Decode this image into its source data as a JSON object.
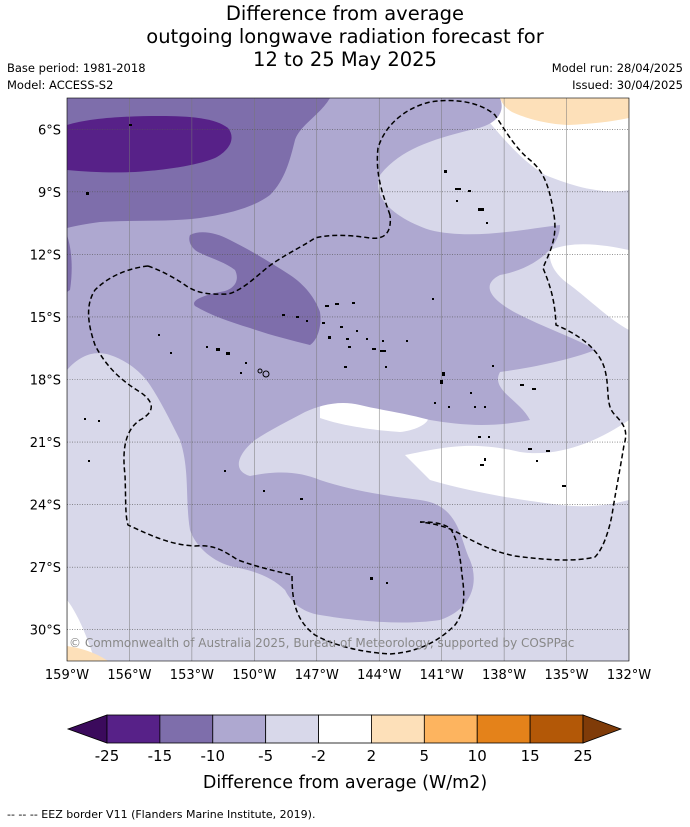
{
  "title": {
    "line1": "Difference from average",
    "line2": "outgoing longwave radiation forecast for",
    "line3": "12 to 25 May 2025"
  },
  "meta": {
    "base_period": "Base period: 1981-2018",
    "model": "Model: ACCESS-S2",
    "model_run": "Model run: 28/04/2025",
    "issued": "Issued: 30/04/2025"
  },
  "map": {
    "lon_range": [
      -159,
      -132
    ],
    "lat_range": [
      -31.5,
      -4.5
    ],
    "lon_ticks": [
      {
        "value": -159,
        "label": "159°W"
      },
      {
        "value": -156,
        "label": "156°W"
      },
      {
        "value": -153,
        "label": "153°W"
      },
      {
        "value": -150,
        "label": "150°W"
      },
      {
        "value": -147,
        "label": "147°W"
      },
      {
        "value": -144,
        "label": "144°W"
      },
      {
        "value": -141,
        "label": "141°W"
      },
      {
        "value": -138,
        "label": "138°W"
      },
      {
        "value": -135,
        "label": "135°W"
      },
      {
        "value": -132,
        "label": "132°W"
      }
    ],
    "lat_ticks": [
      {
        "value": -6,
        "label": "6°S"
      },
      {
        "value": -9,
        "label": "9°S"
      },
      {
        "value": -12,
        "label": "12°S"
      },
      {
        "value": -15,
        "label": "15°S"
      },
      {
        "value": -18,
        "label": "18°S"
      },
      {
        "value": -21,
        "label": "21°S"
      },
      {
        "value": -24,
        "label": "24°S"
      },
      {
        "value": -27,
        "label": "27°S"
      },
      {
        "value": -30,
        "label": "30°S"
      }
    ],
    "grid": true,
    "credit": "© Commonwealth of Australia 2025, Bureau of Meteorology, supported by COSPPac"
  },
  "colorbar": {
    "title": "Difference from average (W/m2)",
    "labels": [
      "-25",
      "-15",
      "-10",
      "-5",
      "-2",
      "2",
      "5",
      "10",
      "15",
      "25"
    ],
    "under_color": "#3b0a5c",
    "colors": [
      "#572188",
      "#7e6eab",
      "#aea8d0",
      "#d8d8ea",
      "#ffffff",
      "#fde0b9",
      "#fdb45f",
      "#e4821a",
      "#b35807"
    ],
    "over_color": "#7f3b08"
  },
  "footer": "--  --  -- EEZ border V11 (Flanders Marine Institute, 2019)."
}
